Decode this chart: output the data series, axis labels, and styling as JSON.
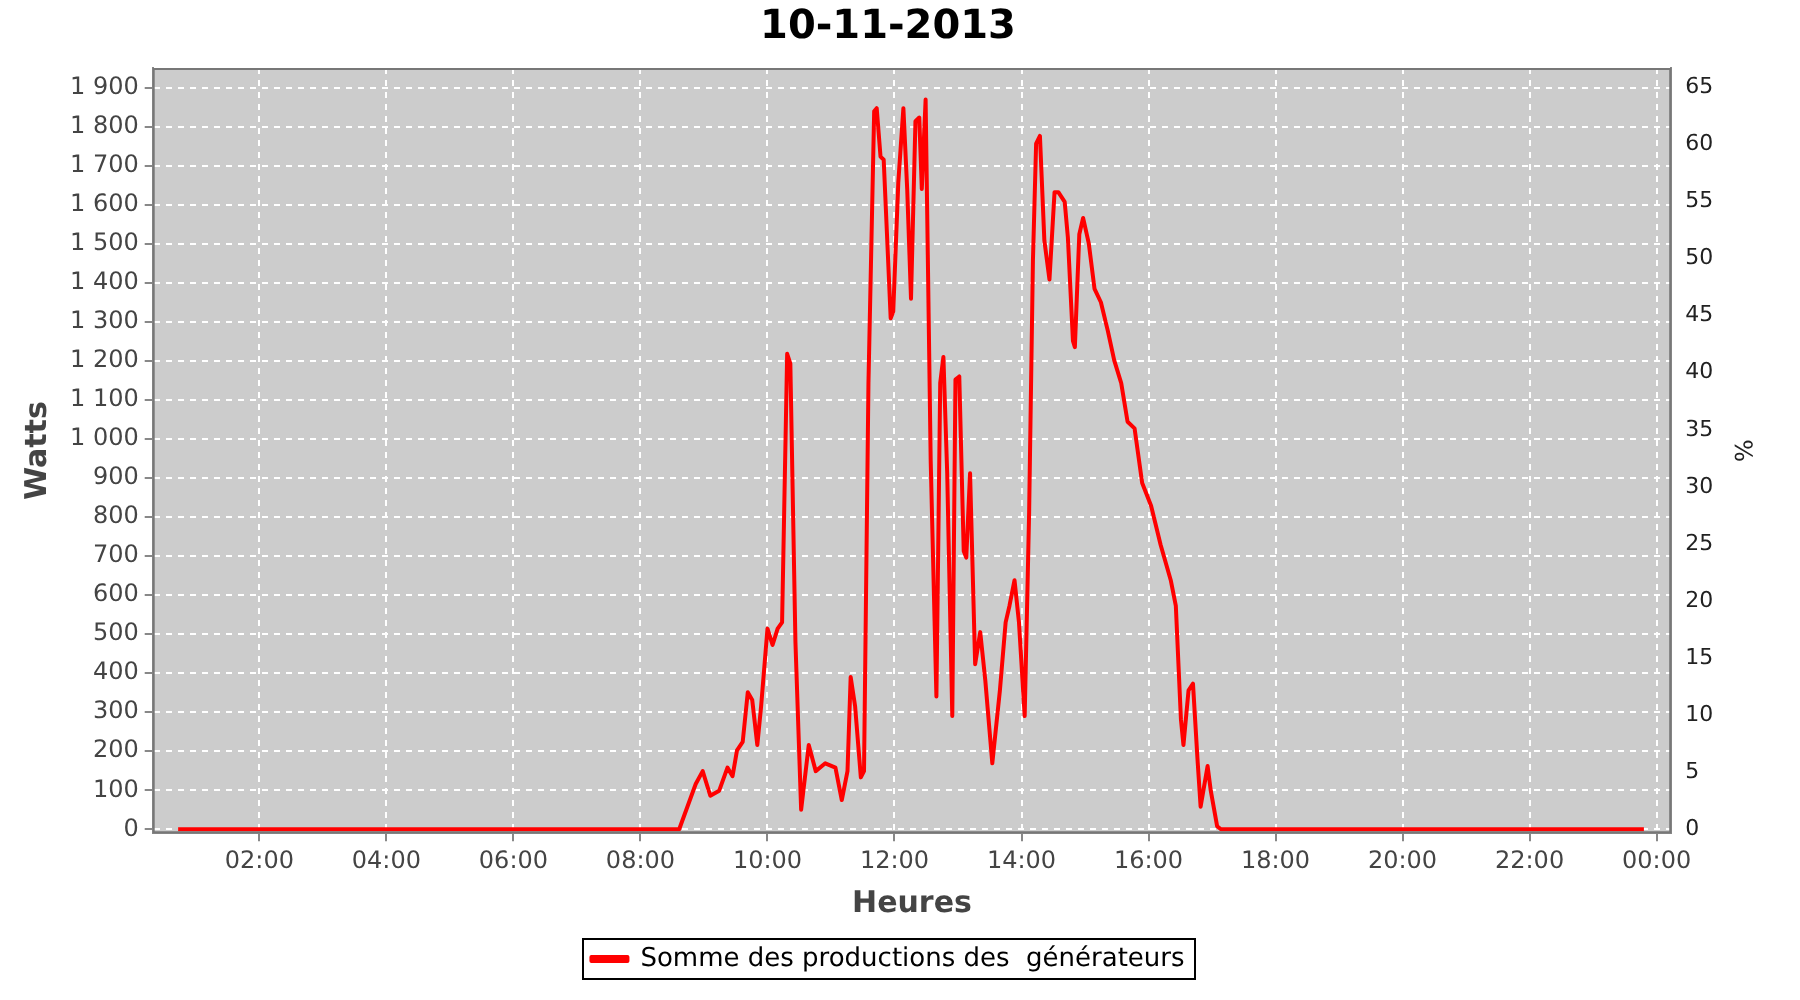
{
  "chart_data": {
    "type": "line",
    "title": "10-11-2013",
    "xlabel": "Heures",
    "ylabel": "Watts",
    "y2label": "%",
    "x": [
      0.72,
      2,
      4,
      6,
      8,
      8.61,
      8.87,
      8.98,
      9.1,
      9.24,
      9.37,
      9.45,
      9.52,
      9.61,
      9.69,
      9.76,
      9.84,
      9.9,
      10.0,
      10.08,
      10.16,
      10.23,
      10.31,
      10.36,
      10.44,
      10.53,
      10.65,
      10.76,
      10.91,
      11.07,
      11.17,
      11.26,
      11.31,
      11.38,
      11.47,
      11.52,
      11.59,
      11.68,
      11.72,
      11.78,
      11.83,
      11.94,
      11.98,
      12.06,
      12.14,
      12.2,
      12.26,
      12.33,
      12.39,
      12.43,
      12.49,
      12.57,
      12.66,
      12.72,
      12.77,
      12.83,
      12.91,
      12.96,
      13.02,
      13.09,
      13.13,
      13.19,
      13.27,
      13.35,
      13.43,
      13.54,
      13.66,
      13.75,
      13.81,
      13.89,
      13.96,
      14.05,
      14.12,
      14.18,
      14.23,
      14.29,
      14.36,
      14.44,
      14.52,
      14.58,
      14.68,
      14.73,
      14.81,
      14.84,
      14.91,
      14.97,
      15.06,
      15.15,
      15.25,
      15.36,
      15.46,
      15.57,
      15.67,
      15.78,
      15.9,
      16.04,
      16.19,
      16.35,
      16.43,
      16.51,
      16.55,
      16.63,
      16.7,
      16.77,
      16.82,
      16.93,
      16.98,
      17.08,
      17.14,
      18,
      20,
      22,
      23.8
    ],
    "series": [
      {
        "name": "Somme des productions des  générateurs",
        "color": "#ff0000",
        "values": [
          0,
          0,
          0,
          0,
          0,
          0,
          116,
          149,
          86,
          99,
          158,
          136,
          202,
          224,
          351,
          331,
          216,
          315,
          514,
          472,
          514,
          530,
          1218,
          1193,
          481,
          50,
          216,
          149,
          169,
          158,
          75,
          149,
          390,
          315,
          133,
          149,
          1143,
          1839,
          1847,
          1723,
          1715,
          1309,
          1326,
          1657,
          1847,
          1640,
          1359,
          1814,
          1823,
          1640,
          1869,
          944,
          340,
          1143,
          1210,
          912,
          290,
          1152,
          1160,
          713,
          696,
          912,
          423,
          505,
          381,
          169,
          356,
          530,
          572,
          638,
          530,
          290,
          812,
          1458,
          1756,
          1776,
          1508,
          1408,
          1632,
          1632,
          1607,
          1516,
          1251,
          1235,
          1524,
          1566,
          1500,
          1384,
          1350,
          1276,
          1201,
          1143,
          1044,
          1027,
          887,
          829,
          729,
          638,
          572,
          282,
          216,
          356,
          373,
          182,
          58,
          162,
          99,
          8,
          0,
          0,
          0,
          0,
          0
        ]
      }
    ],
    "xlim": [
      0.32,
      24.23
    ],
    "xticks": [
      {
        "value": 2,
        "label": "02:00"
      },
      {
        "value": 4,
        "label": "04:00"
      },
      {
        "value": 6,
        "label": "06:00"
      },
      {
        "value": 8,
        "label": "08:00"
      },
      {
        "value": 10,
        "label": "10:00"
      },
      {
        "value": 12,
        "label": "12:00"
      },
      {
        "value": 14,
        "label": "14:00"
      },
      {
        "value": 16,
        "label": "16:00"
      },
      {
        "value": 18,
        "label": "18:00"
      },
      {
        "value": 20,
        "label": "20:00"
      },
      {
        "value": 22,
        "label": "22:00"
      },
      {
        "value": 24,
        "label": "00:00"
      }
    ],
    "ylim": [
      -10,
      1950
    ],
    "yticks": [
      0,
      100,
      200,
      300,
      400,
      500,
      600,
      700,
      800,
      900,
      {
        "value": 1000,
        "label": "1 000"
      },
      {
        "value": 1100,
        "label": "1 100"
      },
      {
        "value": 1200,
        "label": "1 200"
      },
      {
        "value": 1300,
        "label": "1 300"
      },
      {
        "value": 1400,
        "label": "1 400"
      },
      {
        "value": 1500,
        "label": "1 500"
      },
      {
        "value": 1600,
        "label": "1 600"
      },
      {
        "value": 1700,
        "label": "1 700"
      },
      {
        "value": 1800,
        "label": "1 800"
      },
      {
        "value": 1900,
        "label": "1 900"
      }
    ],
    "y2lim": [
      -0.34,
      66.7
    ],
    "y2ticks": [
      0,
      5,
      10,
      15,
      20,
      25,
      30,
      35,
      40,
      45,
      50,
      55,
      60,
      65
    ],
    "grid": true,
    "legend": "bottom"
  }
}
